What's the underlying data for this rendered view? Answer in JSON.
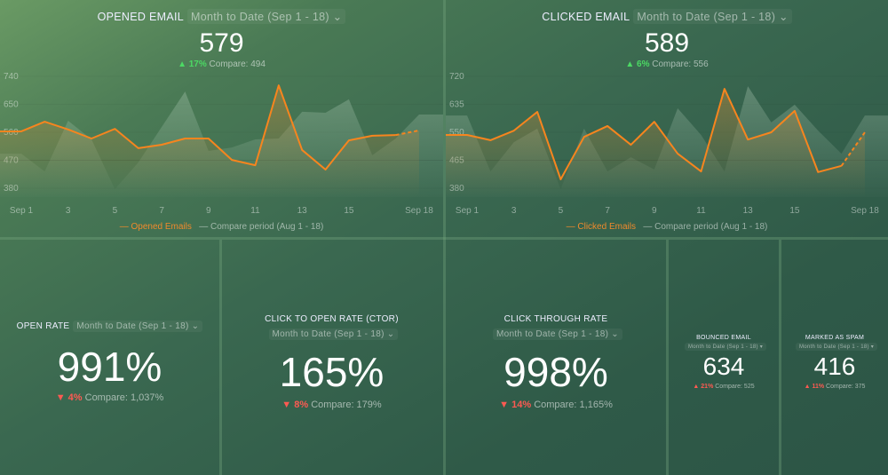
{
  "colors": {
    "accent": "#f7851e",
    "up": "#4cd964",
    "down": "#ff5a52"
  },
  "charts": [
    {
      "title": "OPENED EMAIL",
      "period": "Month to Date (Sep 1 - 18)",
      "value": "579",
      "change": "17%",
      "direction": "up",
      "compare": "Compare: 494",
      "legend_main": "Opened Emails",
      "legend_compare": "Compare period (Aug 1 - 18)"
    },
    {
      "title": "CLICKED EMAIL",
      "period": "Month to Date (Sep 1 - 18)",
      "value": "589",
      "change": "6%",
      "direction": "up",
      "compare": "Compare: 556",
      "legend_main": "Clicked Emails",
      "legend_compare": "Compare period (Aug 1 - 18)"
    }
  ],
  "chart_data": [
    {
      "type": "line",
      "title": "OPENED EMAIL",
      "x": [
        1,
        2,
        3,
        4,
        5,
        6,
        7,
        8,
        9,
        10,
        11,
        12,
        13,
        14,
        15,
        16,
        17,
        18
      ],
      "xticks": [
        "Sep 1",
        "3",
        "5",
        "7",
        "9",
        "11",
        "13",
        "15",
        "Sep 18"
      ],
      "yticks": [
        "740",
        "650",
        "560",
        "470",
        "380"
      ],
      "ylim": [
        380,
        740
      ],
      "series": [
        {
          "name": "Opened Emails",
          "values": [
            563,
            594,
            569,
            540,
            571,
            509,
            520,
            540,
            540,
            471,
            454,
            711,
            503,
            440,
            534,
            549,
            551,
            566
          ]
        },
        {
          "name": "Compare period (Aug 1 - 18)",
          "values": [
            491,
            434,
            597,
            537,
            377,
            463,
            577,
            691,
            500,
            511,
            537,
            540,
            626,
            623,
            666,
            486,
            540,
            617
          ]
        }
      ]
    },
    {
      "type": "line",
      "title": "CLICKED EMAIL",
      "x": [
        1,
        2,
        3,
        4,
        5,
        6,
        7,
        8,
        9,
        10,
        11,
        12,
        13,
        14,
        15,
        16,
        17,
        18
      ],
      "xticks": [
        "Sep 1",
        "3",
        "5",
        "7",
        "9",
        "11",
        "13",
        "15",
        "Sep 18"
      ],
      "yticks": [
        "720",
        "635",
        "550",
        "465",
        "380"
      ],
      "ylim": [
        380,
        720
      ],
      "series": [
        {
          "name": "Clicked Emails",
          "values": [
            542,
            526,
            555,
            612,
            407,
            536,
            569,
            512,
            582,
            485,
            431,
            682,
            528,
            550,
            615,
            429,
            448,
            550
          ]
        },
        {
          "name": "Compare period (Aug 1 - 18)",
          "values": [
            601,
            431,
            520,
            561,
            377,
            561,
            431,
            474,
            437,
            623,
            542,
            431,
            690,
            580,
            634,
            555,
            485,
            601
          ]
        }
      ]
    }
  ],
  "kpis": [
    {
      "title": "OPEN RATE",
      "period": "Month to Date (Sep 1 - 18)",
      "value": "991%",
      "change": "4%",
      "direction": "down",
      "compare": "Compare: 1,037%"
    },
    {
      "title": "CLICK TO OPEN RATE (CTOR)",
      "period": "Month to Date (Sep 1 - 18)",
      "value": "165%",
      "change": "8%",
      "direction": "down",
      "compare": "Compare: 179%"
    },
    {
      "title": "CLICK THROUGH RATE",
      "period": "Month to Date (Sep 1 - 18)",
      "value": "998%",
      "change": "14%",
      "direction": "down",
      "compare": "Compare: 1,165%"
    },
    {
      "title": "BOUNCED EMAIL",
      "period": "Month to Date (Sep 1 - 18)",
      "value": "634",
      "change": "21%",
      "direction": "up",
      "compare": "Compare: 525"
    },
    {
      "title": "MARKED AS SPAM",
      "period": "Month to Date (Sep 1 - 18)",
      "value": "416",
      "change": "11%",
      "direction": "up",
      "compare": "Compare: 375"
    }
  ]
}
